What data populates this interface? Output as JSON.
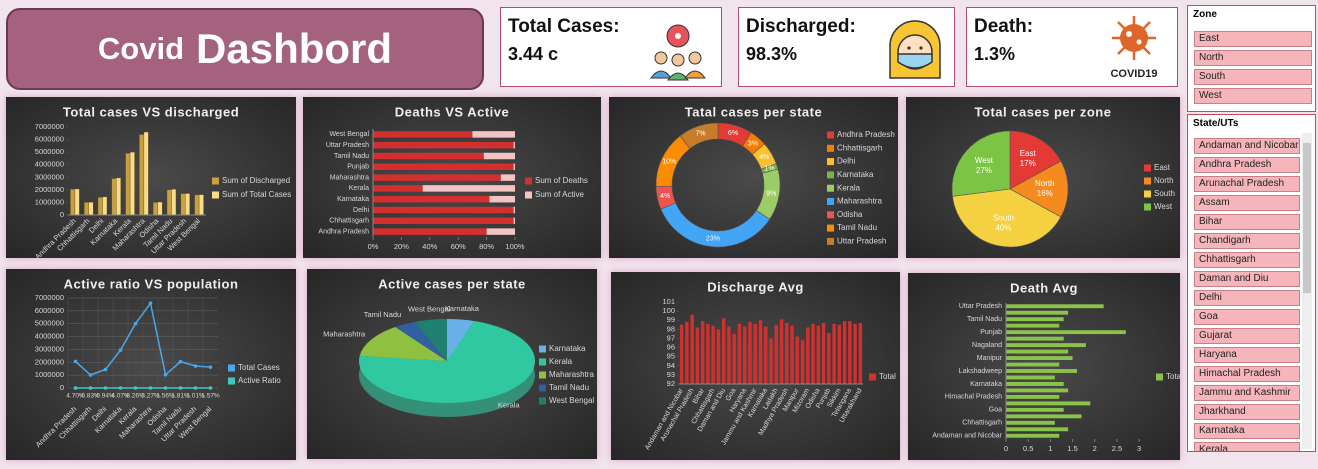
{
  "header": {
    "title_small": "Covid",
    "title_large": "Dashbord"
  },
  "kpis": [
    {
      "label": "Total Cases:",
      "value": "3.44 c"
    },
    {
      "label": "Discharged:",
      "value": "98.3%"
    },
    {
      "label": "Death:",
      "value": "1.3%",
      "icon_text": "COVID19"
    }
  ],
  "slicers": [
    {
      "title": "Zone",
      "items": [
        "East",
        "North",
        "South",
        "West"
      ]
    },
    {
      "title": "State/UTs",
      "items": [
        "Andaman and Nicobar",
        "Andhra Pradesh",
        "Arunachal Pradesh",
        "Assam",
        "Bihar",
        "Chandigarh",
        "Chhattisgarh",
        "Daman and Diu",
        "Delhi",
        "Goa",
        "Gujarat",
        "Haryana",
        "Himachal Pradesh",
        "Jammu and Kashmir",
        "Jharkhand",
        "Karnataka",
        "Kerala"
      ]
    }
  ],
  "chart_data": [
    {
      "type": "bar",
      "title": "Total cases VS discharged",
      "categories": [
        "Andhra Pradesh",
        "Chhattisgarh",
        "Delhi",
        "Karnataka",
        "Kerala",
        "Maharashtra",
        "Odisha",
        "Tamil Nadu",
        "Uttar Pradesh",
        "West Bengal"
      ],
      "series": [
        {
          "name": "Sum of Discharged",
          "color": "#c9a040",
          "values": [
            2050000,
            1000000,
            1400000,
            2900000,
            4900000,
            6400000,
            1000000,
            2000000,
            1700000,
            1600000
          ]
        },
        {
          "name": "Sum of Total Cases",
          "color": "#f7dc8a",
          "values": [
            2070000,
            1010000,
            1440000,
            2950000,
            5000000,
            6600000,
            1030000,
            2050000,
            1710000,
            1620000
          ]
        }
      ],
      "ylim": [
        0,
        7000000
      ],
      "yticks": [
        0,
        1000000,
        2000000,
        3000000,
        4000000,
        5000000,
        6000000,
        7000000
      ],
      "legend": "right"
    },
    {
      "type": "bar",
      "orientation": "horizontal",
      "stacked": true,
      "title": "Deaths VS Active",
      "categories": [
        "Andhra Pradesh",
        "Chhattisgarh",
        "Delhi",
        "Karnataka",
        "Kerala",
        "Maharashtra",
        "Punjab",
        "Tamil Nadu",
        "Uttar Pradesh",
        "West Bengal"
      ],
      "series": [
        {
          "name": "Sum of Deaths",
          "color": "#d32f2f",
          "values": [
            80,
            99,
            99,
            82,
            35,
            90,
            99,
            78,
            99,
            70
          ]
        },
        {
          "name": "Sum of Active",
          "color": "#f2c4c4",
          "values": [
            20,
            1,
            1,
            18,
            65,
            10,
            1,
            22,
            1,
            30
          ]
        }
      ],
      "xlim": [
        0,
        100
      ],
      "xticks": [
        {
          "value": 0,
          "label": "0%"
        },
        {
          "value": 20,
          "label": "20%"
        },
        {
          "value": 40,
          "label": "40%"
        },
        {
          "value": 60,
          "label": "60%"
        },
        {
          "value": 80,
          "label": "80%"
        },
        {
          "value": 100,
          "label": "100%"
        }
      ],
      "legend": "right"
    },
    {
      "type": "pie",
      "donut": true,
      "title": "Tatal cases per state",
      "categories": [
        "Andhra Pradesh",
        "Chhattisgarh",
        "Delhi",
        "Karnataka",
        "Kerala",
        "Maharashtra",
        "Odisha",
        "Tamil Nadu",
        "Uttar Pradesh"
      ],
      "values": [
        6,
        3,
        4,
        1,
        9,
        23,
        4,
        10,
        7
      ],
      "value_labels": [
        "6%",
        "3%",
        "4%",
        "1%",
        "9%",
        "23%",
        "4%",
        "10%",
        "7%"
      ],
      "colors": [
        "#e53935",
        "#f57c00",
        "#fbc02d",
        "#7cb342",
        "#9ccc65",
        "#42a5f5",
        "#ef5350",
        "#fb8c00",
        "#c67c2a"
      ],
      "legend": "right"
    },
    {
      "type": "pie",
      "title": "Total cases per zone",
      "categories": [
        "East",
        "North",
        "South",
        "West"
      ],
      "values": [
        17,
        16,
        40,
        27
      ],
      "value_labels": [
        "17%",
        "16%",
        "40%",
        "27%"
      ],
      "colors": [
        "#e53935",
        "#f58a1f",
        "#f5d040",
        "#7cc544"
      ],
      "legend": "right"
    },
    {
      "type": "line",
      "title": "Active ratio VS population",
      "categories": [
        "Andhra Pradesh",
        "Chhattisgarh",
        "Delhi",
        "Karnataka",
        "Kerala",
        "Maharashtra",
        "Odisha",
        "Tamil Nadu",
        "Uttar Pradesh",
        "West Bengal"
      ],
      "series": [
        {
          "name": "Total Cases",
          "color": "#4aa8e8",
          "values": [
            2070000,
            1010000,
            1440000,
            2950000,
            5000000,
            6600000,
            1030000,
            2050000,
            1710000,
            1620000
          ]
        },
        {
          "name": "Active Ratio",
          "color": "#40c8c0",
          "values": [
            4.7,
            0.83,
            0.94,
            4.07,
            8.26,
            3.27,
            1.56,
            1.81,
            1.01,
            1.57
          ],
          "value_labels": [
            "4.70%",
            "0.83%",
            "0.94%",
            "4.07%",
            "8.26%",
            "3.27%",
            "1.56%",
            "1.81%",
            "1.01%",
            "1.57%"
          ]
        }
      ],
      "ylim": [
        0,
        7000000
      ],
      "yticks": [
        0,
        1000000,
        2000000,
        3000000,
        4000000,
        5000000,
        6000000,
        7000000
      ],
      "grid": true,
      "legend": "right"
    },
    {
      "type": "pie",
      "3d": true,
      "title": "Active cases per state",
      "categories": [
        "Karnataka",
        "Kerala",
        "Maharashtra",
        "Tamil Nadu",
        "West Bengal"
      ],
      "values": [
        5,
        72,
        13,
        4,
        6
      ],
      "colors": [
        "#6ab0e8",
        "#30c8a0",
        "#90c040",
        "#3060a0",
        "#208070"
      ],
      "legend": "right"
    },
    {
      "type": "bar",
      "title": "Discharge Avg",
      "categories": [
        "Andaman and Nicobar",
        null,
        "Arunachal Pradesh",
        null,
        "Bihar",
        null,
        "Chhattisgarh",
        null,
        "Daman and Diu",
        null,
        "Goa",
        null,
        "Haryana",
        null,
        "Jammu and Kashmir",
        null,
        "Karnataka",
        null,
        "Ladakh",
        null,
        "Madhya Pradesh",
        null,
        "Manipur",
        null,
        "Mizoram",
        null,
        "Odisha",
        null,
        "Punjab",
        null,
        "Sikkim",
        null,
        "Telangana",
        null,
        "Uttarakhand"
      ],
      "series": [
        {
          "name": "Total",
          "color": "#d32f2f",
          "values": [
            98.5,
            98.8,
            99.6,
            98.2,
            98.9,
            98.6,
            98.4,
            98.0,
            99.2,
            98.3,
            97.5,
            98.6,
            98.3,
            98.8,
            98.6,
            99.0,
            98.3,
            97.0,
            98.5,
            99.1,
            98.7,
            98.4,
            97.2,
            96.8,
            98.2,
            98.6,
            98.4,
            98.7,
            97.6,
            98.6,
            98.5,
            98.9,
            98.9,
            98.6,
            98.7
          ]
        }
      ],
      "ylim": [
        92,
        101
      ],
      "yticks": [
        92,
        93,
        94,
        95,
        96,
        97,
        98,
        99,
        100,
        101
      ],
      "legend": "right"
    },
    {
      "type": "bar",
      "orientation": "horizontal",
      "title": "Death Avg",
      "categories": [
        "Andaman and Nicobar",
        null,
        "Chhattisgarh",
        null,
        "Goa",
        null,
        "Himachal Pradesh",
        null,
        "Karnataka",
        null,
        "Lakshadweep",
        null,
        "Manipur",
        null,
        "Nagaland",
        null,
        "Punjab",
        null,
        "Tamil Nadu",
        null,
        "Uttar Pradesh"
      ],
      "series": [
        {
          "name": "Total",
          "color": "#8bc34a",
          "values": [
            1.2,
            1.4,
            1.1,
            1.7,
            1.3,
            1.9,
            1.2,
            1.4,
            1.3,
            1.1,
            1.6,
            1.2,
            1.5,
            1.4,
            1.8,
            1.3,
            2.7,
            1.2,
            1.3,
            1.4,
            2.2
          ]
        }
      ],
      "xlim": [
        0,
        3.2
      ],
      "xticks": [
        0,
        0.5,
        1,
        1.5,
        2,
        2.5,
        3
      ],
      "legend": "right"
    }
  ]
}
